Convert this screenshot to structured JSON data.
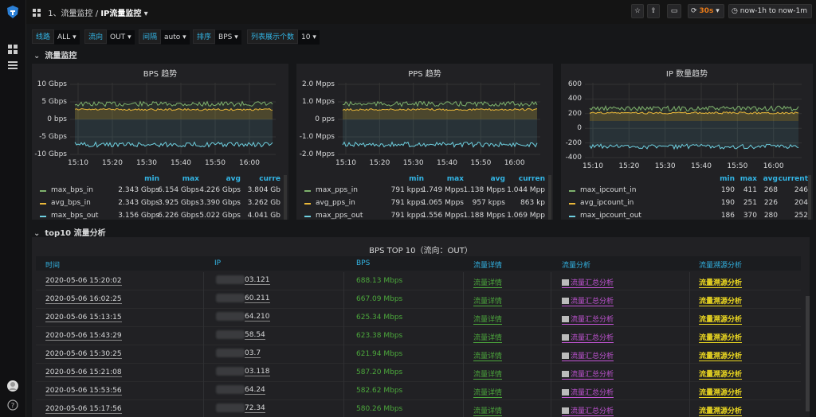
{
  "breadcrumb": {
    "folder": "1、流量监控",
    "sep": "/",
    "title": "IP流量监控",
    "caret": "▾"
  },
  "toolbar": {
    "star": "☆",
    "share": "⇪",
    "tv": "▭",
    "refresh_icon": "⟳",
    "refresh": "30s",
    "refresh_caret": "▾",
    "time_icon": "◷",
    "time_range": "now-1h to now-1m"
  },
  "vars": [
    {
      "label": "线路",
      "value": "ALL",
      "caret": "▾"
    },
    {
      "label": "流向",
      "value": "OUT",
      "caret": "▾"
    },
    {
      "label": "间隔",
      "value": "auto",
      "caret": "▾"
    },
    {
      "label": "排序",
      "value": "BPS",
      "caret": "▾"
    },
    {
      "label": "列表展示个数",
      "value": "10",
      "caret": "▾"
    }
  ],
  "rows": {
    "chev": "⌄",
    "monitor": "流量监控",
    "analysis": "top10 流量分析"
  },
  "panels": [
    {
      "title": "BPS 趋势",
      "y_ticks": [
        "10 Gbps",
        "5 Gbps",
        "0 bps",
        "-5 Gbps",
        "-10 Gbps"
      ],
      "x_ticks": [
        "15:10",
        "15:20",
        "15:30",
        "15:40",
        "15:50",
        "16:00"
      ],
      "legend_cols": [
        "min",
        "max",
        "avg",
        "curre"
      ],
      "legend": [
        {
          "name": "max_bps_in",
          "color": "#7eb26d",
          "vals": [
            "2.343 Gbps",
            "6.154 Gbps",
            "4.226 Gbps",
            "3.804 Gb"
          ]
        },
        {
          "name": "avg_bps_in",
          "color": "#eab839",
          "vals": [
            "2.343 Gbps",
            "3.925 Gbps",
            "3.390 Gbps",
            "3.262 Gb"
          ]
        },
        {
          "name": "max_bps_out",
          "color": "#6ed0e0",
          "vals": [
            "3.156 Gbps",
            "6.226 Gbps",
            "5.022 Gbps",
            "4.041 Gb"
          ]
        }
      ]
    },
    {
      "title": "PPS 趋势",
      "y_ticks": [
        "2.0 Mpps",
        "1.0 Mpps",
        "0 pps",
        "-1.0 Mpps",
        "-2.0 Mpps"
      ],
      "x_ticks": [
        "15:10",
        "15:20",
        "15:30",
        "15:40",
        "15:50",
        "16:00"
      ],
      "legend_cols": [
        "min",
        "max",
        "avg",
        "curren"
      ],
      "legend": [
        {
          "name": "max_pps_in",
          "color": "#7eb26d",
          "vals": [
            "791 kpps",
            "1.749 Mpps",
            "1.138 Mpps",
            "1.044 Mpp"
          ]
        },
        {
          "name": "avg_pps_in",
          "color": "#eab839",
          "vals": [
            "791 kpps",
            "1.065 Mpps",
            "957 kpps",
            "863 kp"
          ]
        },
        {
          "name": "max_pps_out",
          "color": "#6ed0e0",
          "vals": [
            "791 kpps",
            "1.556 Mpps",
            "1.188 Mpps",
            "1.069 Mpp"
          ]
        }
      ]
    },
    {
      "title": "IP 数量趋势",
      "y_ticks": [
        "600",
        "400",
        "200",
        "0",
        "-200",
        "-400"
      ],
      "x_ticks": [
        "15:10",
        "15:20",
        "15:30",
        "15:40",
        "15:50",
        "16:00"
      ],
      "legend_cols": [
        "min",
        "max",
        "avg",
        "current"
      ],
      "legend": [
        {
          "name": "max_ipcount_in",
          "color": "#7eb26d",
          "vals": [
            "190",
            "411",
            "268",
            "246"
          ]
        },
        {
          "name": "avg_ipcount_in",
          "color": "#eab839",
          "vals": [
            "190",
            "251",
            "226",
            "204"
          ]
        },
        {
          "name": "max_ipcount_out",
          "color": "#6ed0e0",
          "vals": [
            "186",
            "370",
            "280",
            "252"
          ]
        }
      ]
    }
  ],
  "table": {
    "title": "BPS TOP 10（流向：OUT）",
    "headers": [
      "时间",
      "IP",
      "BPS",
      "流量详情",
      "流量分析",
      "流量溯源分析"
    ],
    "rows": [
      {
        "time": "2020-05-06 15:20:02",
        "ip": "03.121",
        "bps": "688.13 Mbps",
        "detail": "流量详情",
        "ana": "流量汇总分析",
        "src": "流量溯源分析"
      },
      {
        "time": "2020-05-06 16:02:25",
        "ip": "60.211",
        "bps": "667.09 Mbps",
        "detail": "流量详情",
        "ana": "流量汇总分析",
        "src": "流量溯源分析"
      },
      {
        "time": "2020-05-06 15:13:15",
        "ip": "64.210",
        "bps": "625.34 Mbps",
        "detail": "流量详情",
        "ana": "流量汇总分析",
        "src": "流量溯源分析"
      },
      {
        "time": "2020-05-06 15:43:29",
        "ip": "58.54",
        "bps": "623.38 Mbps",
        "detail": "流量详情",
        "ana": "流量汇总分析",
        "src": "流量溯源分析"
      },
      {
        "time": "2020-05-06 15:30:25",
        "ip": "03.7",
        "bps": "621.94 Mbps",
        "detail": "流量详情",
        "ana": "流量汇总分析",
        "src": "流量溯源分析"
      },
      {
        "time": "2020-05-06 15:21:08",
        "ip": "03.118",
        "bps": "587.20 Mbps",
        "detail": "流量详情",
        "ana": "流量汇总分析",
        "src": "流量溯源分析"
      },
      {
        "time": "2020-05-06 15:53:56",
        "ip": "64.24",
        "bps": "582.62 Mbps",
        "detail": "流量详情",
        "ana": "流量汇总分析",
        "src": "流量溯源分析"
      },
      {
        "time": "2020-05-06 15:17:56",
        "ip": "72.34",
        "bps": "580.26 Mbps",
        "detail": "流量详情",
        "ana": "流量汇总分析",
        "src": "流量溯源分析"
      }
    ]
  },
  "colors": {
    "accent": "#33b5e5",
    "green": "#4ca83c",
    "purple": "#c355d6",
    "yellow": "#ecd821",
    "orange": "#eb7b18"
  }
}
